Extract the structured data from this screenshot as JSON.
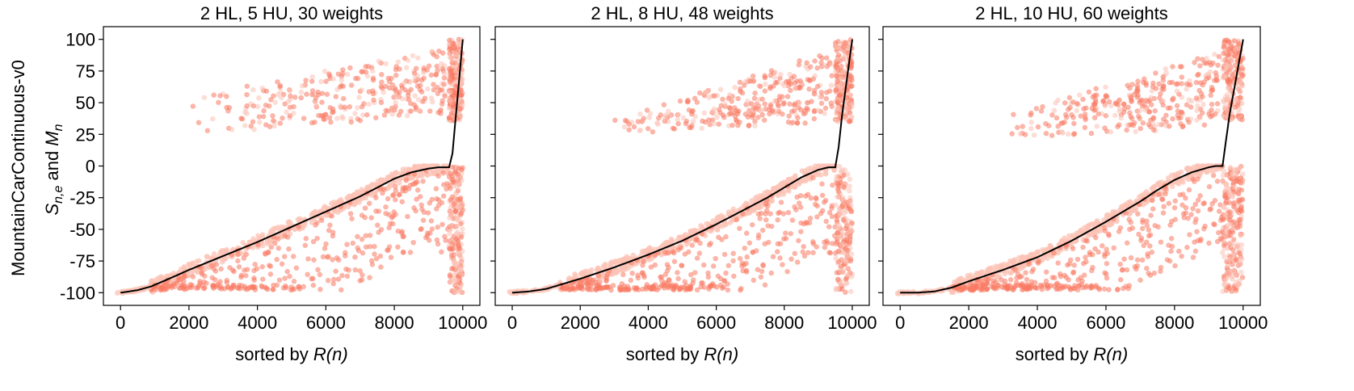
{
  "figure": {
    "row_label": "MountainCarContinuous-v0",
    "ylabel_prefix": "S",
    "ylabel_sub1": "n,e",
    "ylabel_mid": " and ",
    "ylabel_M": "M",
    "ylabel_sub2": "n",
    "xlabel_prefix": "sorted by ",
    "xlabel_italic": "R(n)",
    "colors": {
      "scatter": "#fa7a63",
      "scatter_light": "#fcc3b6",
      "line": "#000000"
    }
  },
  "chart_data": [
    {
      "type": "scatter",
      "title": "2 HL, 5 HU, 30 weights",
      "xlim": [
        -500,
        10500
      ],
      "ylim": [
        -110,
        110
      ],
      "xticks": [
        0,
        2000,
        4000,
        6000,
        8000,
        10000
      ],
      "yticks": [
        -100,
        -75,
        -50,
        -25,
        0,
        25,
        50,
        75,
        100
      ],
      "yticklabels": [
        "-100",
        "-75",
        "-50",
        "-25",
        "0",
        "25",
        "50",
        "75",
        "100"
      ],
      "mean_curve": {
        "x": [
          0,
          500,
          900,
          1500,
          2000,
          3000,
          4000,
          5000,
          6000,
          7000,
          7500,
          8000,
          8500,
          9000,
          9300,
          9600,
          9700,
          9800,
          9900,
          10000
        ],
        "y": [
          -100,
          -98,
          -95,
          -88,
          -82,
          -71,
          -60,
          -48,
          -36,
          -24,
          -17,
          -10,
          -5,
          -2,
          -1,
          -1,
          10,
          40,
          70,
          100
        ]
      },
      "break_x": 9600,
      "upper_cloud": {
        "x_start": 2100,
        "x_end": 9500,
        "y_low_start": 25,
        "y_low_end": 40,
        "y_high_start": 55,
        "y_high_end": 93
      },
      "lower_cloud": {
        "x_start": 900,
        "x_end": 9600
      },
      "vertical_band": {
        "x_start": 9600,
        "x_end": 10000
      }
    },
    {
      "type": "scatter",
      "title": "2 HL, 8 HU, 48 weights",
      "xlim": [
        -500,
        10500
      ],
      "ylim": [
        -110,
        110
      ],
      "xticks": [
        0,
        2000,
        4000,
        6000,
        8000,
        10000
      ],
      "yticks": [
        -100,
        -75,
        -50,
        -25,
        0,
        25,
        50,
        75,
        100
      ],
      "mean_curve": {
        "x": [
          0,
          500,
          1000,
          1500,
          2000,
          3000,
          4000,
          5000,
          6000,
          7000,
          7500,
          8000,
          8500,
          9000,
          9300,
          9500,
          9600,
          9700,
          9850,
          10000
        ],
        "y": [
          -100,
          -99,
          -97,
          -93,
          -89,
          -80,
          -70,
          -59,
          -46,
          -32,
          -25,
          -17,
          -9,
          -3,
          -1,
          -1,
          15,
          40,
          70,
          100
        ]
      },
      "break_x": 9500,
      "upper_cloud": {
        "x_start": 2900,
        "x_end": 9400,
        "y_low_start": 25,
        "y_low_end": 35,
        "y_high_start": 35,
        "y_high_end": 92
      },
      "lower_cloud": {
        "x_start": 1400,
        "x_end": 9500
      },
      "vertical_band": {
        "x_start": 9500,
        "x_end": 10000
      }
    },
    {
      "type": "scatter",
      "title": "2 HL, 10 HU, 60 weights",
      "xlim": [
        -500,
        10500
      ],
      "ylim": [
        -110,
        110
      ],
      "xticks": [
        0,
        2000,
        4000,
        6000,
        8000,
        10000
      ],
      "yticks": [
        -100,
        -75,
        -50,
        -25,
        0,
        25,
        50,
        75,
        100
      ],
      "mean_curve": {
        "x": [
          0,
          500,
          1000,
          1500,
          2000,
          3000,
          4000,
          5000,
          6000,
          7000,
          7500,
          8000,
          8500,
          9000,
          9200,
          9400,
          9500,
          9600,
          9800,
          10000
        ],
        "y": [
          -100,
          -100,
          -99,
          -96,
          -91,
          -82,
          -72,
          -59,
          -44,
          -28,
          -19,
          -11,
          -5,
          -1,
          0,
          0,
          20,
          40,
          70,
          100
        ]
      },
      "break_x": 9400,
      "upper_cloud": {
        "x_start": 3100,
        "x_end": 9300,
        "y_low_start": 22,
        "y_low_end": 30,
        "y_high_start": 40,
        "y_high_end": 90
      },
      "lower_cloud": {
        "x_start": 1500,
        "x_end": 9400
      },
      "vertical_band": {
        "x_start": 9400,
        "x_end": 10000
      }
    }
  ]
}
